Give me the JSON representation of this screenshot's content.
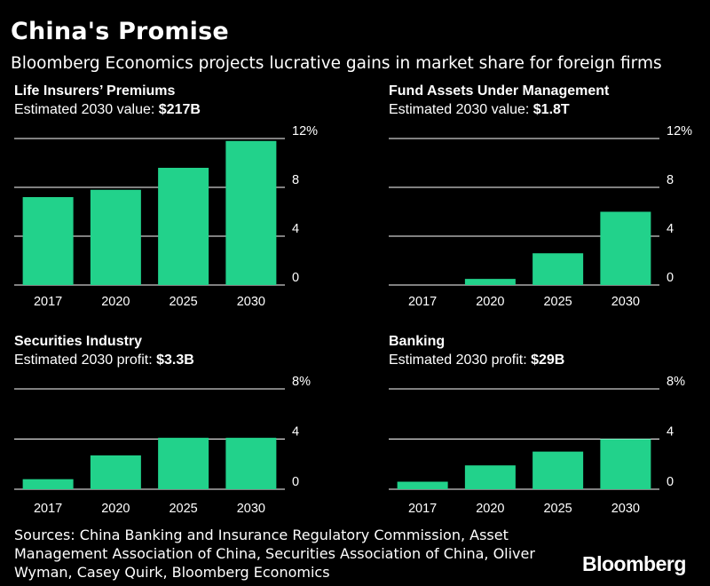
{
  "title": "China's Promise",
  "subtitle": "Bloomberg Economics projects lucrative gains in market share for foreign firms",
  "sources": "Sources: China Banking and Insurance Regulatory Commission, Asset Management Association of China, Securities Association of China, Oliver Wyman, Casey Quirk, Bloomberg Economics",
  "logo": "Bloomberg",
  "colors": {
    "bar": "#22d28b",
    "background": "#000000",
    "gridline": "#ffffff"
  },
  "chart_data": [
    {
      "type": "bar",
      "title": "Life Insurers’ Premiums",
      "subtitle_label": "Estimated 2030 value: ",
      "subtitle_value": "$217B",
      "categories": [
        "2017",
        "2020",
        "2025",
        "2030"
      ],
      "values": [
        7.2,
        7.8,
        9.6,
        11.8
      ],
      "ylim": [
        0,
        12
      ],
      "yticks": [
        0,
        4,
        8,
        12
      ],
      "ytick_labels": [
        "0",
        "4",
        "8",
        "12%"
      ],
      "ylabel": "",
      "xlabel": ""
    },
    {
      "type": "bar",
      "title": "Fund Assets Under Management",
      "subtitle_label": "Estimated 2030 value: ",
      "subtitle_value": "$1.8T",
      "categories": [
        "2017",
        "2020",
        "2025",
        "2030"
      ],
      "values": [
        0,
        0.5,
        2.6,
        6.0
      ],
      "ylim": [
        0,
        12
      ],
      "yticks": [
        0,
        4,
        8,
        12
      ],
      "ytick_labels": [
        "0",
        "4",
        "8",
        "12%"
      ],
      "ylabel": "",
      "xlabel": ""
    },
    {
      "type": "bar",
      "title": "Securities Industry",
      "subtitle_label": "Estimated 2030 profit: ",
      "subtitle_value": "$3.3B",
      "categories": [
        "2017",
        "2020",
        "2025",
        "2030"
      ],
      "values": [
        0.8,
        2.7,
        4.1,
        4.1
      ],
      "ylim": [
        0,
        8
      ],
      "yticks": [
        0,
        4,
        8
      ],
      "ytick_labels": [
        "0",
        "4",
        "8%"
      ],
      "ylabel": "",
      "xlabel": ""
    },
    {
      "type": "bar",
      "title": "Banking",
      "subtitle_label": "Estimated 2030 profit: ",
      "subtitle_value": "$29B",
      "categories": [
        "2017",
        "2020",
        "2025",
        "2030"
      ],
      "values": [
        0.6,
        1.9,
        3.0,
        4.0
      ],
      "ylim": [
        0,
        8
      ],
      "yticks": [
        0,
        4,
        8
      ],
      "ytick_labels": [
        "0",
        "4",
        "8%"
      ],
      "ylabel": "",
      "xlabel": ""
    }
  ]
}
